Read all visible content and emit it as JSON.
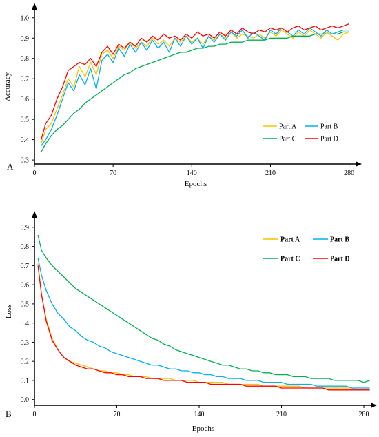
{
  "chart_data": [
    {
      "type": "line",
      "panel_label": "A",
      "xlabel": "Epochs",
      "ylabel": "Accuracy",
      "x_ticks": [
        "0",
        "70",
        "140",
        "210",
        "280"
      ],
      "y_ticks": [
        "0.3",
        "0.4",
        "0.5",
        "0.6",
        "0.7",
        "0.8",
        "0.9",
        "1.0"
      ],
      "xlim": [
        0,
        287
      ],
      "ylim": [
        0.28,
        1.04
      ],
      "grid": false,
      "legend_placement": "bottom-right",
      "legend_bold": false,
      "series": [
        {
          "name": "Part A",
          "color": "#FFC000",
          "x": [
            6,
            10,
            15,
            20,
            25,
            30,
            35,
            40,
            45,
            50,
            55,
            60,
            65,
            70,
            75,
            80,
            85,
            90,
            95,
            100,
            105,
            110,
            115,
            120,
            125,
            130,
            135,
            140,
            145,
            150,
            155,
            160,
            165,
            170,
            175,
            180,
            185,
            190,
            195,
            200,
            205,
            210,
            215,
            220,
            225,
            230,
            235,
            240,
            245,
            250,
            255,
            260,
            265,
            270,
            275,
            280
          ],
          "y": [
            0.38,
            0.45,
            0.48,
            0.55,
            0.62,
            0.7,
            0.66,
            0.76,
            0.71,
            0.78,
            0.72,
            0.82,
            0.84,
            0.8,
            0.86,
            0.84,
            0.88,
            0.85,
            0.88,
            0.86,
            0.9,
            0.87,
            0.89,
            0.86,
            0.9,
            0.88,
            0.91,
            0.88,
            0.9,
            0.87,
            0.91,
            0.89,
            0.92,
            0.9,
            0.93,
            0.9,
            0.92,
            0.91,
            0.9,
            0.92,
            0.9,
            0.93,
            0.91,
            0.94,
            0.92,
            0.9,
            0.93,
            0.91,
            0.94,
            0.92,
            0.9,
            0.93,
            0.91,
            0.89,
            0.92,
            0.93
          ]
        },
        {
          "name": "Part B",
          "color": "#00B0F0",
          "x": [
            6,
            10,
            15,
            20,
            25,
            30,
            35,
            40,
            45,
            50,
            55,
            60,
            65,
            70,
            75,
            80,
            85,
            90,
            95,
            100,
            105,
            110,
            115,
            120,
            125,
            130,
            135,
            140,
            145,
            150,
            155,
            160,
            165,
            170,
            175,
            180,
            185,
            190,
            195,
            200,
            205,
            210,
            215,
            220,
            225,
            230,
            235,
            240,
            245,
            250,
            255,
            260,
            265,
            270,
            275,
            280
          ],
          "y": [
            0.37,
            0.4,
            0.45,
            0.52,
            0.6,
            0.68,
            0.64,
            0.72,
            0.67,
            0.75,
            0.65,
            0.79,
            0.82,
            0.78,
            0.85,
            0.81,
            0.87,
            0.83,
            0.88,
            0.84,
            0.89,
            0.85,
            0.88,
            0.83,
            0.9,
            0.86,
            0.91,
            0.87,
            0.9,
            0.85,
            0.91,
            0.88,
            0.92,
            0.89,
            0.93,
            0.91,
            0.94,
            0.9,
            0.93,
            0.91,
            0.89,
            0.94,
            0.92,
            0.95,
            0.93,
            0.91,
            0.94,
            0.92,
            0.95,
            0.93,
            0.91,
            0.94,
            0.92,
            0.93,
            0.94,
            0.94
          ]
        },
        {
          "name": "Part C",
          "color": "#00B050",
          "x": [
            6,
            10,
            15,
            20,
            25,
            30,
            35,
            40,
            45,
            50,
            55,
            60,
            65,
            70,
            75,
            80,
            85,
            90,
            95,
            100,
            105,
            110,
            115,
            120,
            125,
            130,
            135,
            140,
            145,
            150,
            155,
            160,
            165,
            170,
            175,
            180,
            185,
            190,
            195,
            200,
            205,
            210,
            215,
            220,
            225,
            230,
            235,
            240,
            245,
            250,
            255,
            260,
            265,
            270,
            275,
            280
          ],
          "y": [
            0.34,
            0.38,
            0.42,
            0.45,
            0.47,
            0.5,
            0.53,
            0.55,
            0.58,
            0.6,
            0.62,
            0.64,
            0.66,
            0.68,
            0.7,
            0.72,
            0.73,
            0.75,
            0.76,
            0.77,
            0.78,
            0.79,
            0.8,
            0.81,
            0.82,
            0.83,
            0.83,
            0.84,
            0.85,
            0.85,
            0.86,
            0.86,
            0.87,
            0.87,
            0.88,
            0.88,
            0.88,
            0.89,
            0.89,
            0.89,
            0.89,
            0.9,
            0.9,
            0.9,
            0.9,
            0.91,
            0.91,
            0.91,
            0.91,
            0.92,
            0.92,
            0.92,
            0.92,
            0.92,
            0.93,
            0.93
          ]
        },
        {
          "name": "Part D",
          "color": "#FF0000",
          "x": [
            6,
            10,
            15,
            20,
            25,
            30,
            35,
            40,
            45,
            50,
            55,
            60,
            65,
            70,
            75,
            80,
            85,
            90,
            95,
            100,
            105,
            110,
            115,
            120,
            125,
            130,
            135,
            140,
            145,
            150,
            155,
            160,
            165,
            170,
            175,
            180,
            185,
            190,
            195,
            200,
            205,
            210,
            215,
            220,
            225,
            230,
            235,
            240,
            245,
            250,
            255,
            260,
            265,
            270,
            275,
            280
          ],
          "y": [
            0.4,
            0.48,
            0.52,
            0.6,
            0.66,
            0.74,
            0.76,
            0.78,
            0.77,
            0.8,
            0.76,
            0.83,
            0.86,
            0.82,
            0.87,
            0.85,
            0.88,
            0.86,
            0.9,
            0.88,
            0.91,
            0.89,
            0.92,
            0.9,
            0.91,
            0.89,
            0.92,
            0.9,
            0.93,
            0.91,
            0.92,
            0.9,
            0.93,
            0.91,
            0.94,
            0.92,
            0.95,
            0.93,
            0.92,
            0.94,
            0.93,
            0.95,
            0.94,
            0.95,
            0.93,
            0.95,
            0.96,
            0.94,
            0.95,
            0.96,
            0.94,
            0.95,
            0.96,
            0.95,
            0.96,
            0.97
          ]
        }
      ]
    },
    {
      "type": "line",
      "panel_label": "B",
      "xlabel": "Epochs",
      "ylabel": "Loss",
      "x_ticks": [
        "0",
        "70",
        "140",
        "210",
        "280"
      ],
      "y_ticks": [
        "0.0",
        "0.1",
        "0.2",
        "0.3",
        "0.4",
        "0.5",
        "0.6",
        "0.7",
        "0.8",
        "0.9"
      ],
      "xlim": [
        0,
        287
      ],
      "ylim": [
        -0.03,
        0.95
      ],
      "grid": false,
      "legend_placement": "top-right",
      "legend_bold": true,
      "series": [
        {
          "name": "Part A",
          "color": "#FFC000",
          "x": [
            3,
            6,
            10,
            15,
            20,
            25,
            30,
            35,
            40,
            45,
            50,
            55,
            60,
            65,
            70,
            75,
            80,
            85,
            90,
            95,
            100,
            105,
            110,
            115,
            120,
            125,
            130,
            135,
            140,
            145,
            150,
            155,
            160,
            165,
            170,
            175,
            180,
            185,
            190,
            195,
            200,
            205,
            210,
            215,
            220,
            225,
            230,
            235,
            240,
            245,
            250,
            255,
            260,
            265,
            270,
            275,
            280,
            285
          ],
          "y": [
            0.71,
            0.55,
            0.42,
            0.32,
            0.26,
            0.22,
            0.2,
            0.19,
            0.18,
            0.17,
            0.16,
            0.15,
            0.15,
            0.14,
            0.14,
            0.13,
            0.13,
            0.12,
            0.12,
            0.12,
            0.11,
            0.11,
            0.11,
            0.11,
            0.1,
            0.1,
            0.1,
            0.1,
            0.09,
            0.09,
            0.09,
            0.09,
            0.09,
            0.08,
            0.08,
            0.08,
            0.08,
            0.08,
            0.08,
            0.07,
            0.07,
            0.07,
            0.07,
            0.07,
            0.07,
            0.07,
            0.06,
            0.06,
            0.06,
            0.06,
            0.06,
            0.06,
            0.06,
            0.06,
            0.06,
            0.05,
            0.05,
            0.05
          ]
        },
        {
          "name": "Part B",
          "color": "#00B0F0",
          "x": [
            3,
            6,
            10,
            15,
            20,
            25,
            30,
            35,
            40,
            45,
            50,
            55,
            60,
            65,
            70,
            75,
            80,
            85,
            90,
            95,
            100,
            105,
            110,
            115,
            120,
            125,
            130,
            135,
            140,
            145,
            150,
            155,
            160,
            165,
            170,
            175,
            180,
            185,
            190,
            195,
            200,
            205,
            210,
            215,
            220,
            225,
            230,
            235,
            240,
            245,
            250,
            255,
            260,
            265,
            270,
            275,
            280,
            285
          ],
          "y": [
            0.74,
            0.65,
            0.57,
            0.5,
            0.45,
            0.42,
            0.38,
            0.36,
            0.33,
            0.31,
            0.3,
            0.28,
            0.27,
            0.25,
            0.24,
            0.23,
            0.22,
            0.21,
            0.2,
            0.19,
            0.18,
            0.18,
            0.17,
            0.16,
            0.16,
            0.15,
            0.15,
            0.14,
            0.14,
            0.13,
            0.13,
            0.12,
            0.12,
            0.11,
            0.11,
            0.11,
            0.1,
            0.1,
            0.1,
            0.09,
            0.09,
            0.09,
            0.09,
            0.08,
            0.08,
            0.08,
            0.08,
            0.08,
            0.07,
            0.07,
            0.07,
            0.07,
            0.07,
            0.07,
            0.06,
            0.06,
            0.06,
            0.06
          ]
        },
        {
          "name": "Part C",
          "color": "#00B050",
          "x": [
            3,
            6,
            10,
            15,
            20,
            25,
            30,
            35,
            40,
            45,
            50,
            55,
            60,
            65,
            70,
            75,
            80,
            85,
            90,
            95,
            100,
            105,
            110,
            115,
            120,
            125,
            130,
            135,
            140,
            145,
            150,
            155,
            160,
            165,
            170,
            175,
            180,
            185,
            190,
            195,
            200,
            205,
            210,
            215,
            220,
            225,
            230,
            235,
            240,
            245,
            250,
            255,
            260,
            265,
            270,
            275,
            280,
            285
          ],
          "y": [
            0.86,
            0.78,
            0.74,
            0.7,
            0.67,
            0.64,
            0.61,
            0.58,
            0.56,
            0.54,
            0.52,
            0.5,
            0.48,
            0.46,
            0.44,
            0.42,
            0.4,
            0.38,
            0.36,
            0.34,
            0.32,
            0.31,
            0.29,
            0.28,
            0.26,
            0.25,
            0.24,
            0.23,
            0.22,
            0.21,
            0.2,
            0.19,
            0.18,
            0.18,
            0.17,
            0.16,
            0.16,
            0.15,
            0.15,
            0.14,
            0.14,
            0.13,
            0.13,
            0.13,
            0.12,
            0.12,
            0.12,
            0.11,
            0.11,
            0.11,
            0.11,
            0.1,
            0.1,
            0.1,
            0.1,
            0.1,
            0.09,
            0.1
          ]
        },
        {
          "name": "Part D",
          "color": "#FF0000",
          "x": [
            3,
            6,
            10,
            15,
            20,
            25,
            30,
            35,
            40,
            45,
            50,
            55,
            60,
            65,
            70,
            75,
            80,
            85,
            90,
            95,
            100,
            105,
            110,
            115,
            120,
            125,
            130,
            135,
            140,
            145,
            150,
            155,
            160,
            165,
            170,
            175,
            180,
            185,
            190,
            195,
            200,
            205,
            210,
            215,
            220,
            225,
            230,
            235,
            240,
            245,
            250,
            255,
            260,
            265,
            270,
            275,
            280,
            285
          ],
          "y": [
            0.7,
            0.55,
            0.41,
            0.31,
            0.26,
            0.22,
            0.2,
            0.18,
            0.17,
            0.16,
            0.16,
            0.15,
            0.14,
            0.14,
            0.13,
            0.13,
            0.12,
            0.12,
            0.12,
            0.11,
            0.11,
            0.11,
            0.1,
            0.1,
            0.1,
            0.1,
            0.09,
            0.09,
            0.09,
            0.09,
            0.08,
            0.08,
            0.08,
            0.08,
            0.08,
            0.08,
            0.07,
            0.07,
            0.07,
            0.07,
            0.07,
            0.07,
            0.06,
            0.06,
            0.06,
            0.06,
            0.06,
            0.06,
            0.06,
            0.06,
            0.05,
            0.05,
            0.05,
            0.05,
            0.05,
            0.05,
            0.05,
            0.05
          ]
        }
      ]
    }
  ]
}
